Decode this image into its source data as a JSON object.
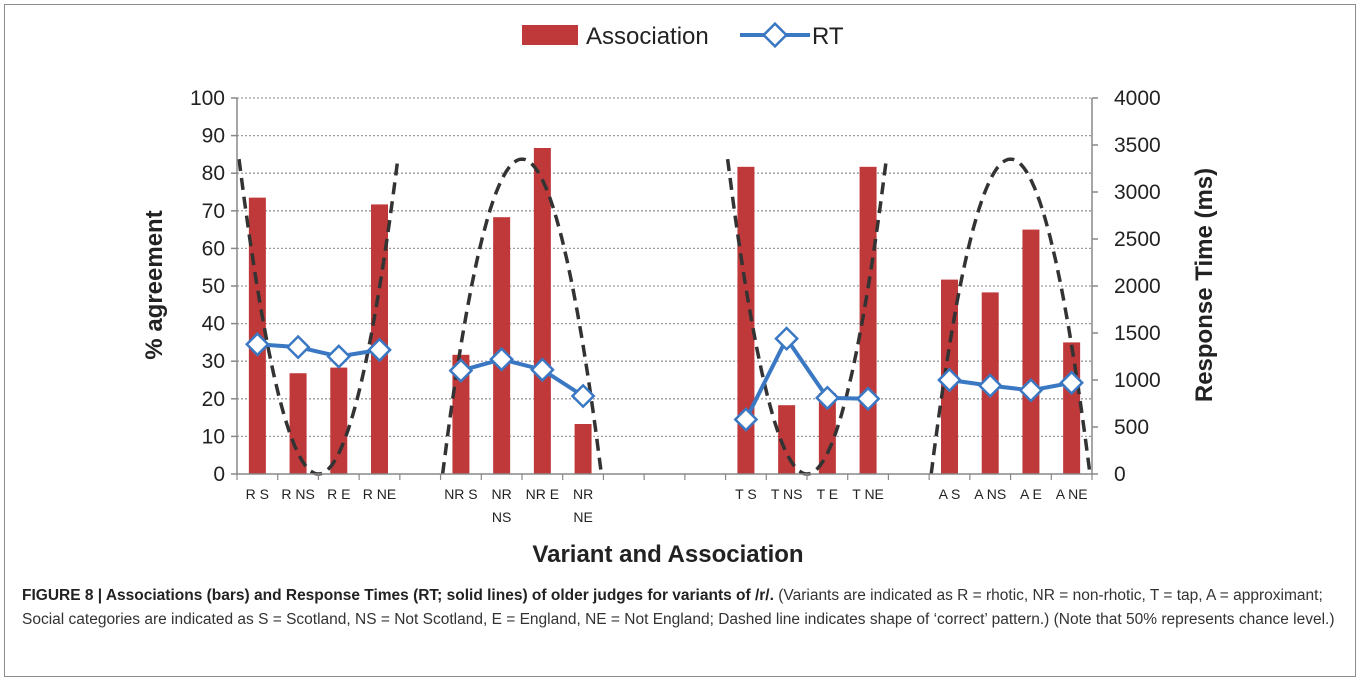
{
  "chart_data": {
    "type": "bar",
    "categories": [
      "R S",
      "R NS",
      "R E",
      "R NE",
      "NR S",
      "NR NS",
      "NR E",
      "NR NE",
      "T S",
      "T NS",
      "T E",
      "T NE",
      "A S",
      "A NS",
      "A E",
      "A NE"
    ],
    "category_labels": [
      [
        "R S"
      ],
      [
        "R NS"
      ],
      [
        "R E"
      ],
      [
        "R NE"
      ],
      [
        "NR S"
      ],
      [
        "NR",
        "NS"
      ],
      [
        "NR E"
      ],
      [
        "NR",
        "NE"
      ],
      [
        "T S"
      ],
      [
        "T NS"
      ],
      [
        "T E"
      ],
      [
        "T NE"
      ],
      [
        "A S"
      ],
      [
        "A NS"
      ],
      [
        "A E"
      ],
      [
        "A NE"
      ]
    ],
    "series": [
      {
        "name": "Association",
        "type": "bar",
        "axis": "left",
        "values": [
          73.5,
          26.8,
          28.3,
          71.7,
          31.7,
          68.3,
          86.7,
          13.3,
          81.7,
          18.3,
          21.5,
          81.7,
          51.7,
          48.3,
          65.0,
          35.0
        ]
      },
      {
        "name": "RT",
        "type": "line",
        "axis": "right",
        "values": [
          1380,
          1350,
          1250,
          1320,
          1100,
          1220,
          1110,
          830,
          580,
          1440,
          810,
          800,
          1000,
          940,
          890,
          970
        ]
      }
    ],
    "xlabel": "Variant and Association",
    "ylabel": "% agreement",
    "y2label": "Response Time (ms)",
    "ylim": [
      0,
      100
    ],
    "y2lim": [
      0,
      4000
    ],
    "yticks": [
      "0",
      "10",
      "20",
      "30",
      "40",
      "50",
      "60",
      "70",
      "80",
      "90",
      "100"
    ],
    "y2ticks": [
      "0",
      "500",
      "1000",
      "1500",
      "2000",
      "2500",
      "3000",
      "3500",
      "4000"
    ],
    "grid": true,
    "legend_position": "top",
    "colors": {
      "bar": "#c0393a",
      "line": "#3b78c3",
      "marker_fill": "#ffffff",
      "dashed": "#333333",
      "grid": "#9a9a9a",
      "axis": "#888888"
    }
  },
  "caption": {
    "lead": "FIGURE 8 | Associations (bars) and Response Times (RT; solid lines) of older judges for variants of /r/.",
    "body": " (Variants are indicated as R = rhotic, NR = non-rhotic, T = tap, A = approximant; Social categories are indicated as S = Scotland, NS = Not Scotland, E = England, NE = Not England; Dashed line indicates shape of ‘correct’ pattern.) (Note that 50% represents chance level.)"
  }
}
